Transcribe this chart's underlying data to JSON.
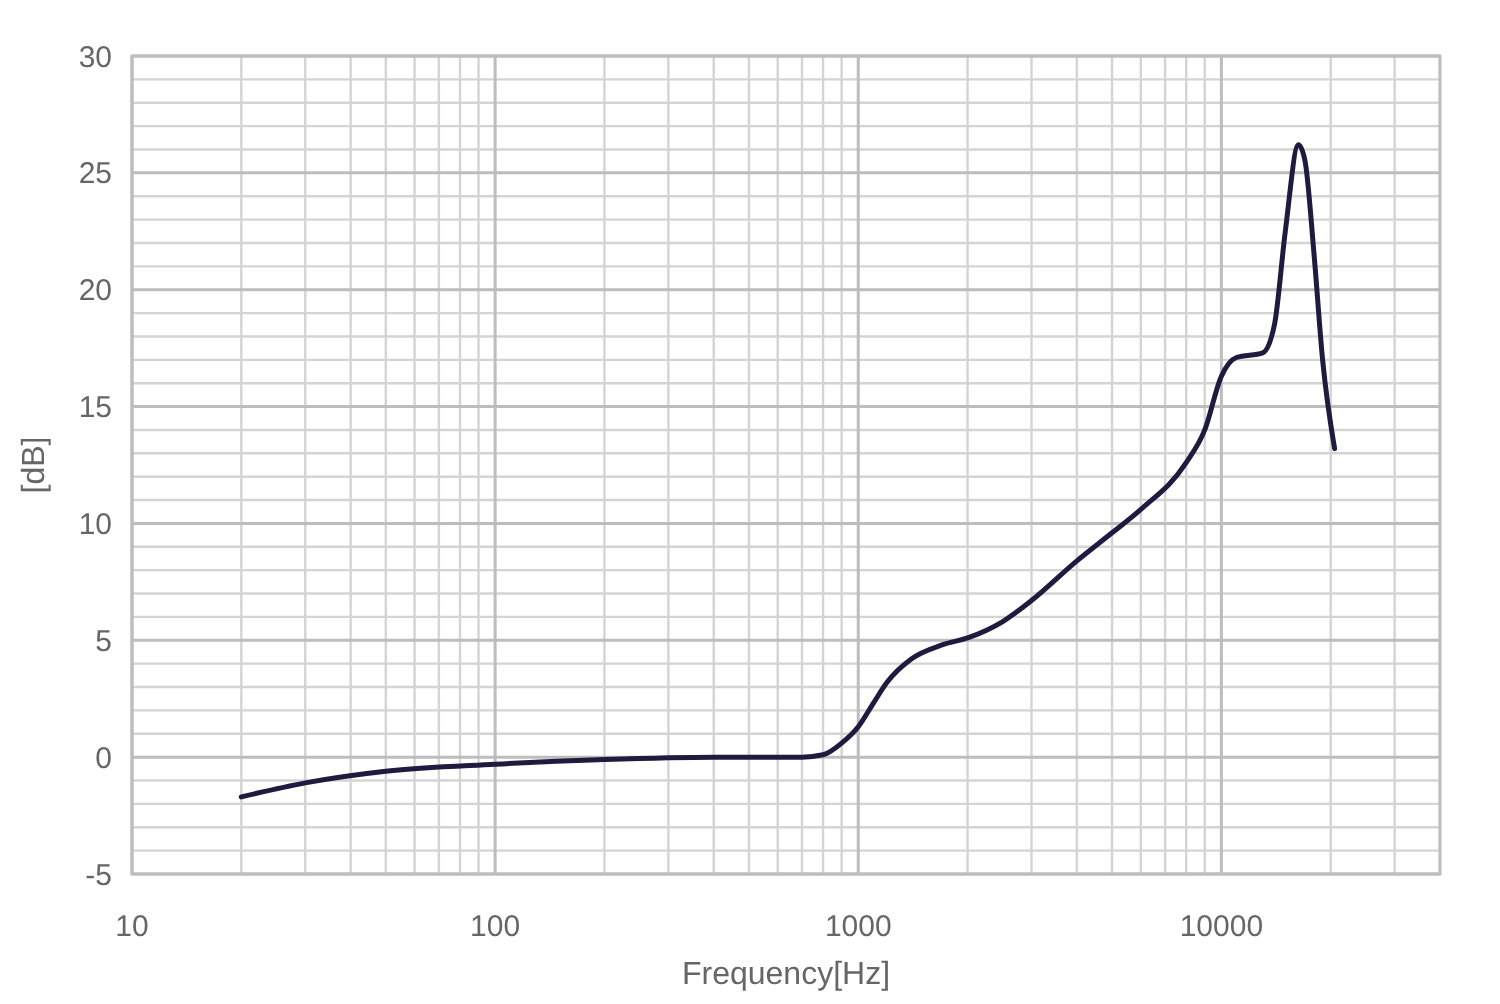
{
  "chart_data": {
    "type": "line",
    "xlabel": "Frequency[Hz]",
    "ylabel": "[dB]",
    "log": "x",
    "grid": true,
    "xlim": [
      10,
      40000
    ],
    "xticks": [
      10,
      100,
      1000,
      10000
    ],
    "ylim": [
      -5,
      30
    ],
    "yticks": [
      -5,
      0,
      5,
      10,
      15,
      20,
      25,
      30
    ],
    "series": [
      {
        "color": "#1e1b3f",
        "x": [
          20,
          30,
          50,
          100,
          200,
          400,
          700,
          800,
          900,
          1000,
          1100,
          1200,
          1400,
          1700,
          2000,
          2500,
          3000,
          4000,
          5000,
          6000,
          8000,
          9000,
          10000,
          11000,
          13000,
          14000,
          15000,
          16300,
          17000,
          18000,
          19000,
          20500
        ],
        "values": [
          -1.7,
          -1.1,
          -0.6,
          -0.3,
          -0.1,
          0,
          0,
          0.1,
          0.6,
          1.3,
          2.3,
          3.2,
          4.2,
          4.8,
          5.1,
          5.8,
          6.7,
          8.4,
          9.6,
          10.6,
          12.6,
          14,
          16.3,
          17.1,
          17.3,
          18.5,
          22.5,
          26.2,
          25.5,
          21.5,
          17,
          13.2
        ]
      }
    ]
  }
}
